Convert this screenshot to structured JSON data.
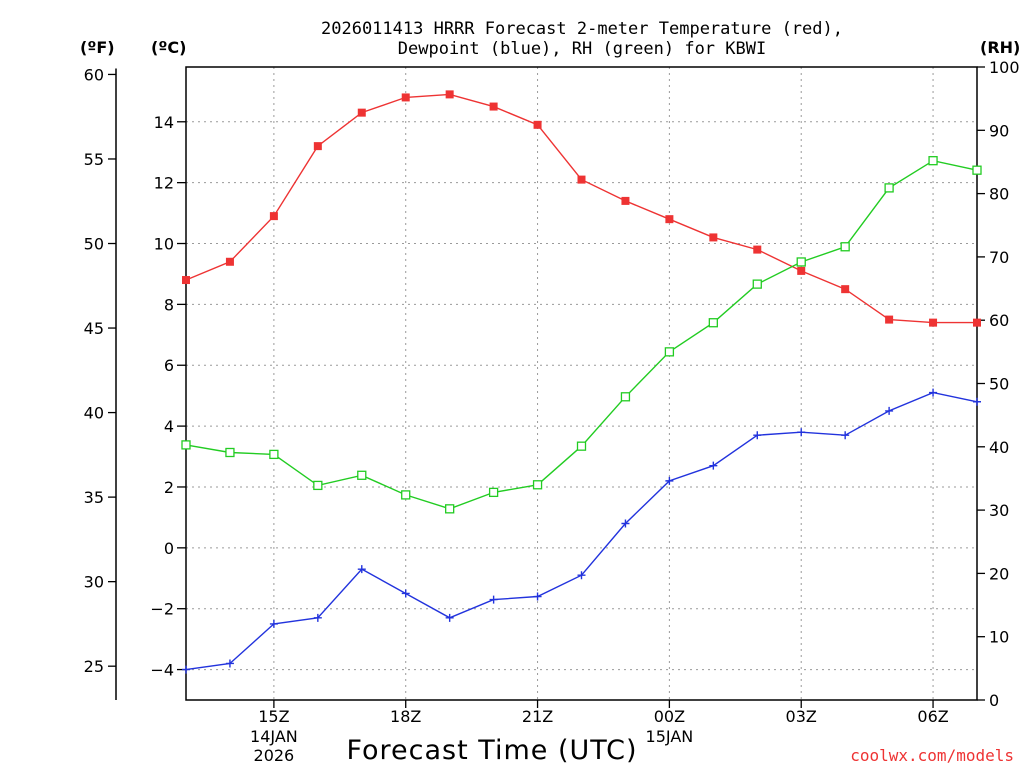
{
  "chart_data": {
    "type": "line",
    "title": [
      "2026011413 HRRR Forecast 2-meter Temperature (red),",
      "Dewpoint (blue), RH (green) for KBWI"
    ],
    "unit_labels": {
      "fahrenheit": "(ºF)",
      "celsius": "(ºC)",
      "rh": "(RH)"
    },
    "xlabel": "Forecast Time (UTC)",
    "credit": "coolwx.com/models",
    "x_range": [
      13,
      31
    ],
    "x_ticks": [
      {
        "x": 15,
        "label": "15Z",
        "sub": [
          "14JAN",
          "2026"
        ]
      },
      {
        "x": 18,
        "label": "18Z",
        "sub": []
      },
      {
        "x": 21,
        "label": "21Z",
        "sub": []
      },
      {
        "x": 24,
        "label": "00Z",
        "sub": [
          "15JAN"
        ]
      },
      {
        "x": 27,
        "label": "03Z",
        "sub": []
      },
      {
        "x": 30,
        "label": "06Z",
        "sub": []
      }
    ],
    "celsius_axis": {
      "range": [
        -5,
        15.8
      ],
      "ticks": [
        -4,
        -2,
        0,
        2,
        4,
        6,
        8,
        10,
        12,
        14
      ],
      "tick_labels": [
        "−4",
        "−2",
        "0",
        "2",
        "4",
        "6",
        "8",
        "10",
        "12",
        "14"
      ]
    },
    "fahrenheit_axis": {
      "ticks": [
        25,
        30,
        35,
        40,
        45,
        50,
        55,
        60
      ],
      "tick_labels": [
        "25",
        "30",
        "35",
        "40",
        "45",
        "50",
        "55",
        "60"
      ]
    },
    "rh_axis": {
      "range": [
        0,
        100
      ],
      "ticks": [
        0,
        10,
        20,
        30,
        40,
        50,
        60,
        70,
        80,
        90,
        100
      ],
      "tick_labels": [
        "0",
        "10",
        "20",
        "30",
        "40",
        "50",
        "60",
        "70",
        "80",
        "90",
        "100"
      ]
    },
    "grid": true,
    "x": [
      13,
      14,
      15,
      16,
      17,
      18,
      19,
      20,
      21,
      22,
      23,
      24,
      25,
      26,
      27,
      28,
      29,
      30,
      31
    ],
    "series": [
      {
        "name": "2-meter Temperature (°C)",
        "axis": "celsius",
        "color": "#ee3333",
        "marker": "filled-square",
        "values": [
          8.8,
          9.4,
          10.9,
          13.2,
          14.3,
          14.8,
          14.9,
          14.5,
          13.9,
          12.1,
          11.4,
          10.8,
          10.2,
          9.8,
          9.1,
          8.5,
          7.5,
          7.4,
          7.4
        ]
      },
      {
        "name": "Dewpoint (°C)",
        "axis": "celsius",
        "color": "#2233dd",
        "marker": "plus",
        "values": [
          -4.0,
          -3.8,
          -2.5,
          -2.3,
          -0.7,
          -1.5,
          -2.3,
          -1.7,
          -1.6,
          -0.9,
          0.8,
          2.2,
          2.7,
          3.7,
          3.8,
          3.7,
          4.5,
          5.1,
          4.8
        ]
      },
      {
        "name": "Relative Humidity (%)",
        "axis": "rh",
        "color": "#22cc22",
        "marker": "open-square",
        "values": [
          40.3,
          39.1,
          38.8,
          33.9,
          35.5,
          32.4,
          30.2,
          32.8,
          34.0,
          40.1,
          47.9,
          55.0,
          59.6,
          65.7,
          69.2,
          71.6,
          80.9,
          85.2,
          83.7
        ]
      }
    ]
  }
}
